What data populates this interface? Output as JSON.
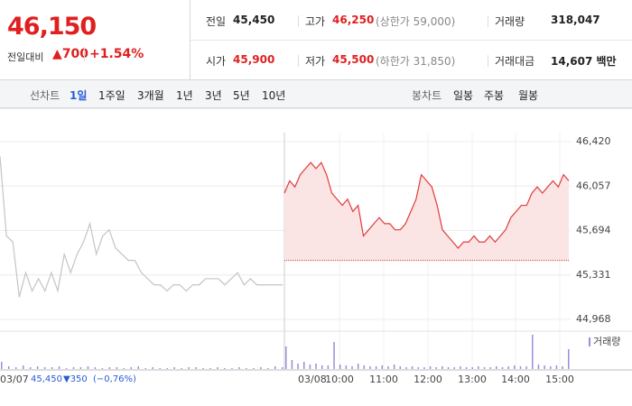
{
  "header": {
    "price": "46,150",
    "change_label": "전일대비",
    "change": "▲700",
    "change_pct": "+1.54%",
    "info": [
      [
        {
          "label": "전일",
          "value": "45,450"
        },
        {
          "label": "고가",
          "value": "46,250",
          "note": "(상한가 59,000)"
        },
        {
          "label": "거래량",
          "value": "318,047"
        }
      ],
      [
        {
          "label": "시가",
          "value": "45,900"
        },
        {
          "label": "저가",
          "value": "45,500",
          "note": "(하한가 31,850)"
        },
        {
          "label": "거래대금",
          "value": "14,607 백만"
        }
      ]
    ]
  },
  "tabs": {
    "line": [
      "선차트",
      "1일",
      "1주일",
      "3개월",
      "1년",
      "3년",
      "5년",
      "10년"
    ],
    "candle": [
      "봉차트",
      "일봉",
      "주봉",
      "월봉"
    ]
  },
  "footer": {
    "date": "03/07",
    "close": "45,450",
    "change": "▼350",
    "pct": "(−0,76%)"
  },
  "chart_data": {
    "type": "line",
    "ylim": [
      44968,
      46420
    ],
    "yticks": [
      {
        "value": 46420,
        "label": "46,420"
      },
      {
        "value": 46057,
        "label": "46,057"
      },
      {
        "value": 45694,
        "label": "45,694"
      },
      {
        "value": 45331,
        "label": "45,331"
      },
      {
        "value": 44968,
        "label": "44,968"
      }
    ],
    "xticks": [
      "03/07",
      "03/08",
      "10:00",
      "11:00",
      "12:00",
      "13:00",
      "14:00",
      "15:00"
    ],
    "baseline": 45450,
    "grid": true,
    "series": [
      {
        "color": "#c4c4c4",
        "values": [
          46300,
          45650,
          45600,
          45150,
          45350,
          45200,
          45300,
          45200,
          45350,
          45200,
          45500,
          45350,
          45500,
          45600,
          45750,
          45500,
          45650,
          45700,
          45550,
          45500,
          45450,
          45450,
          45350,
          45300,
          45250,
          45250,
          45200,
          45250,
          45250,
          45200,
          45250,
          45250,
          45300,
          45300,
          45300,
          45250,
          45300,
          45350,
          45250,
          45300,
          45250,
          45250,
          45250,
          45250,
          45250
        ]
      },
      {
        "color": "#e03c3c",
        "fill": "#fbe4e4",
        "values": [
          46000,
          46100,
          46050,
          46150,
          46200,
          46250,
          46200,
          46250,
          46150,
          46000,
          45950,
          45900,
          45950,
          45850,
          45900,
          45650,
          45700,
          45750,
          45800,
          45750,
          45750,
          45700,
          45700,
          45750,
          45850,
          45950,
          46150,
          46100,
          46050,
          45900,
          45700,
          45650,
          45600,
          45550,
          45600,
          45600,
          45650,
          45600,
          45600,
          45650,
          45600,
          45650,
          45700,
          45800,
          45850,
          45900,
          45900,
          46000,
          46050,
          46000,
          46050,
          46100,
          46050,
          46150,
          46100
        ]
      }
    ],
    "volume": {
      "name": "거래량",
      "color": "#9a8ed8",
      "series": [
        [
          8,
          3,
          2,
          4,
          2,
          3,
          2,
          2,
          3,
          1,
          2,
          2,
          3,
          2,
          1,
          2,
          2,
          1,
          2,
          3,
          1,
          2,
          1,
          1,
          2,
          1,
          2,
          2,
          1,
          1,
          2,
          1,
          1,
          2,
          1,
          1,
          2,
          1,
          3,
          2
        ],
        [
          25,
          10,
          6,
          8,
          5,
          6,
          4,
          4,
          30,
          5,
          4,
          3,
          6,
          4,
          3,
          3,
          4,
          3,
          5,
          3,
          2,
          3,
          2,
          2,
          3,
          2,
          3,
          2,
          2,
          3,
          2,
          2,
          3,
          2,
          2,
          3,
          2,
          3,
          4,
          3,
          3,
          38,
          5,
          4,
          3,
          4,
          3,
          22
        ]
      ]
    }
  }
}
